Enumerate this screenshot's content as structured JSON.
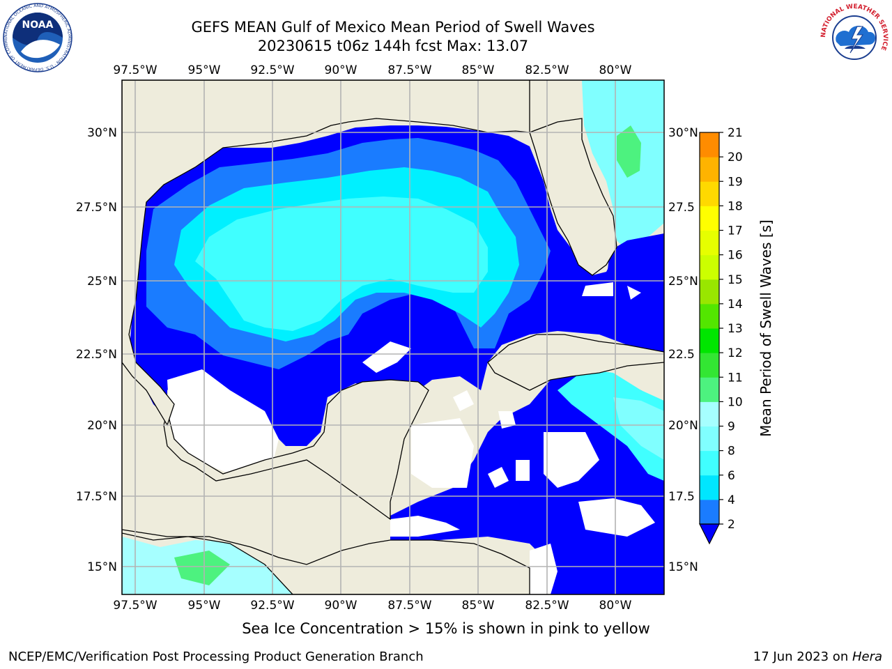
{
  "title": "GEFS MEAN Gulf of Mexico Mean Period of Swell Waves",
  "subtitle": "20230615 t06z 144h fcst   Max: 13.07",
  "lon_labels": [
    "97.5°W",
    "95°W",
    "92.5°W",
    "90°W",
    "87.5°W",
    "85°W",
    "82.5°W",
    "80°W"
  ],
  "lat_labels_left": [
    "30°N",
    "27.5°N",
    "25°N",
    "22.5°N",
    "20°N",
    "17.5°N",
    "15°N"
  ],
  "lat_labels_right": [
    "30°N",
    "27.5",
    "25°N",
    "22.5",
    "20°N",
    "17.5",
    "15°N"
  ],
  "colorbar": {
    "label": "Mean Period of Swell Waves [s]",
    "ticks": [
      "2",
      "4",
      "6",
      "8",
      "9",
      "10",
      "11",
      "12",
      "13",
      "14",
      "15",
      "16",
      "17",
      "18",
      "19",
      "20",
      "21"
    ],
    "colors": [
      "#1a7cff",
      "#00e6ff",
      "#40ffff",
      "#80ffff",
      "#a6ffff",
      "#4df27f",
      "#33e633",
      "#00e600",
      "#53e600",
      "#99e600",
      "#ccff00",
      "#e6ff00",
      "#ffff00",
      "#ffd900",
      "#ffb300",
      "#ff8c00",
      "#ff6600",
      "#ff3300",
      "#ff0000"
    ],
    "extend_color": "#0000ff"
  },
  "colors": {
    "land": "#eeecdc",
    "ocean_low": "#0000ff",
    "grid": "#b0b0b0"
  },
  "logos": {
    "noaa_text": "NOAA",
    "noaa_ring": "NATIONAL OCEANIC AND ATMOSPHERIC ADMINISTRATION · U.S. DEPARTMENT OF COMMERCE",
    "nws_ring": "NATIONAL WEATHER SERVICE"
  },
  "sea_ice_note": "Sea Ice Concentration > 15% is shown in pink to yellow",
  "footer": {
    "left": "NCEP/EMC/Verification Post Processing Product Generation Branch",
    "date": "17 Jun 2023 on ",
    "host": "Hera"
  }
}
